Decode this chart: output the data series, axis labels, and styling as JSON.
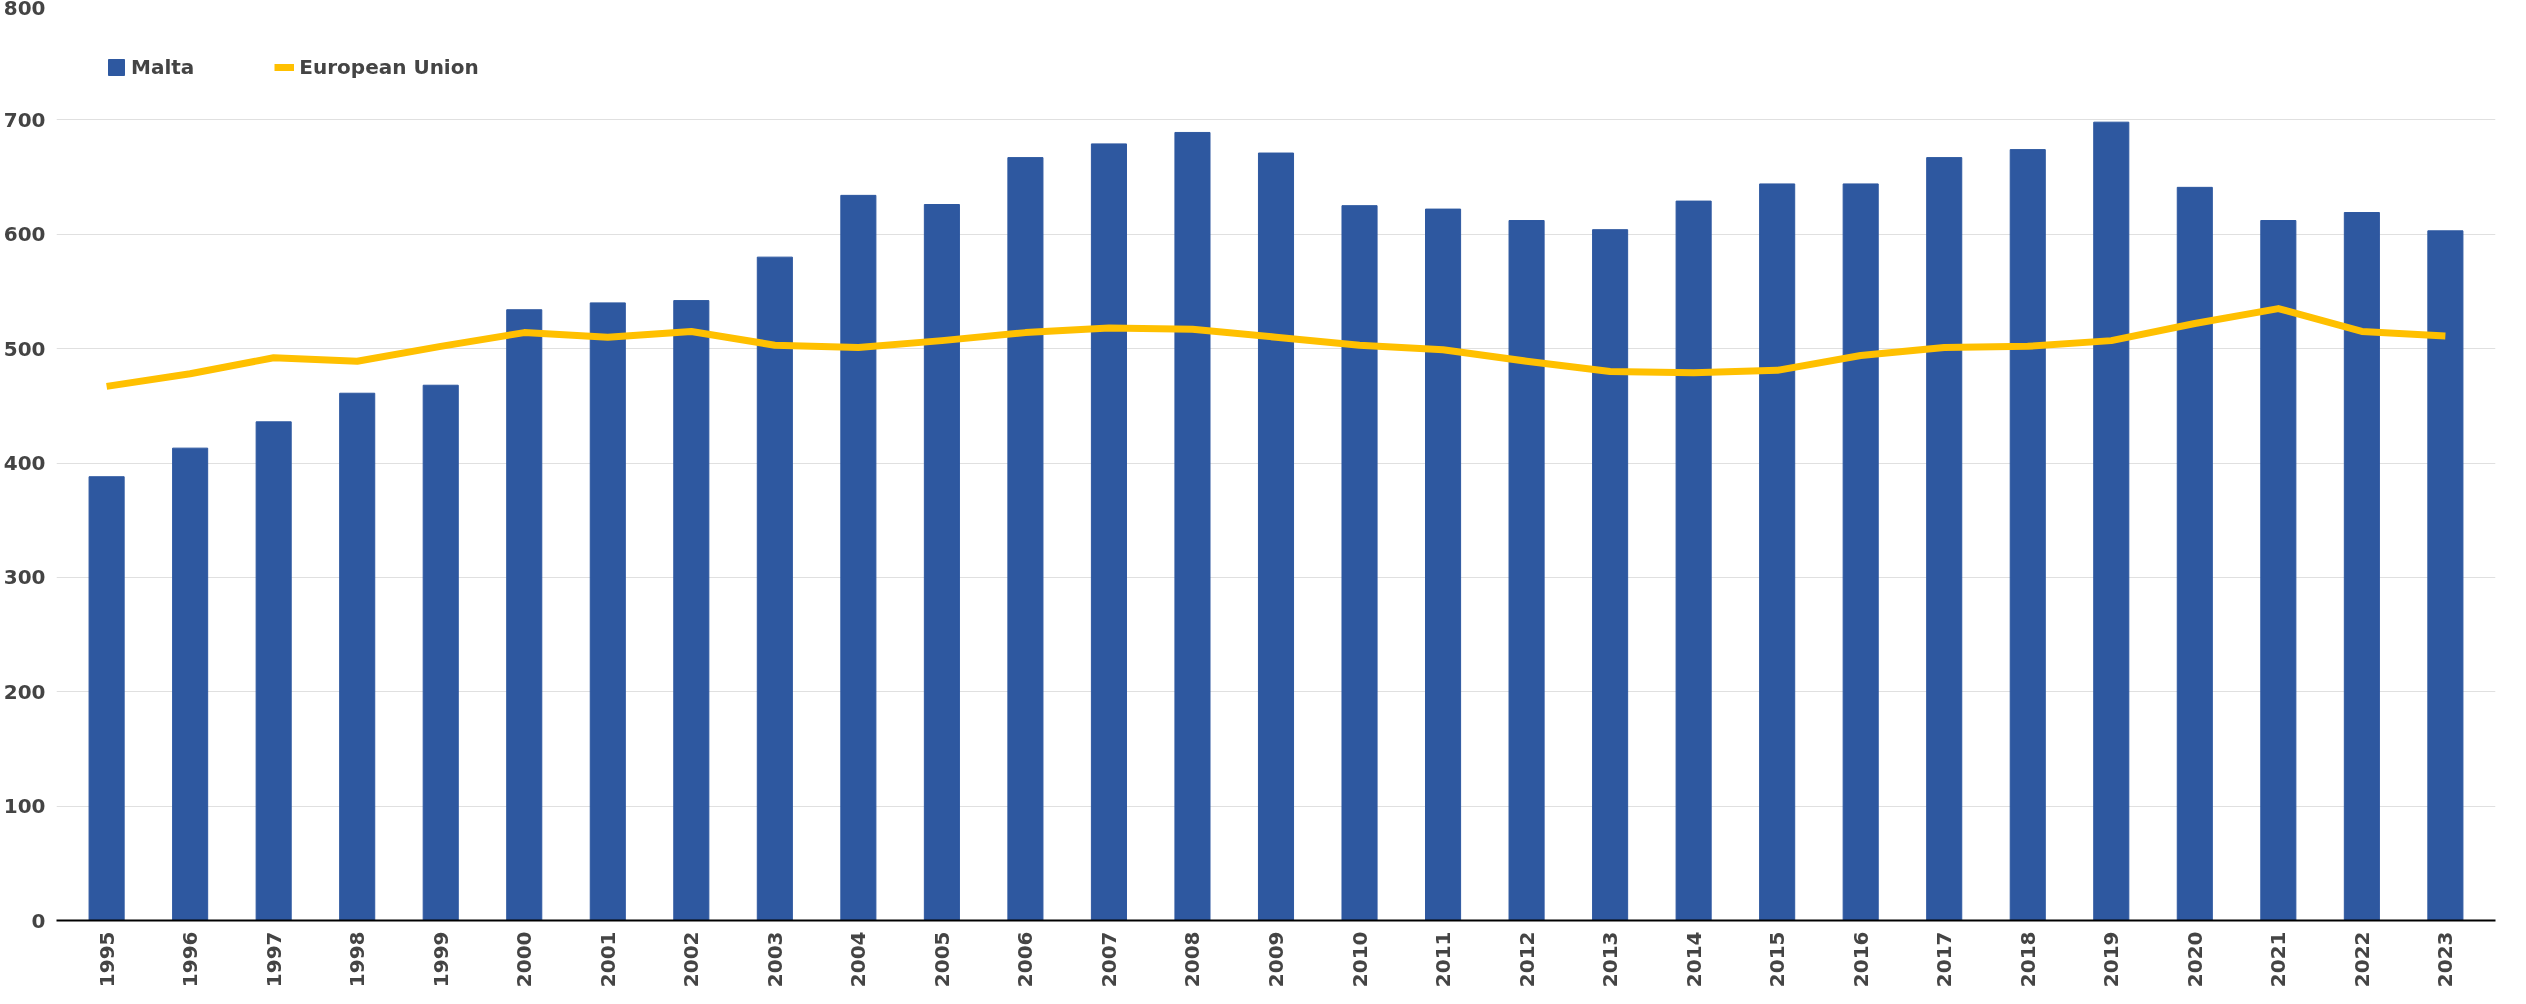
{
  "chart_data": {
    "type": "bar",
    "categories": [
      "1995",
      "1996",
      "1997",
      "1998",
      "1999",
      "2000",
      "2001",
      "2002",
      "2003",
      "2004",
      "2005",
      "2006",
      "2007",
      "2008",
      "2009",
      "2010",
      "2011",
      "2012",
      "2013",
      "2014",
      "2015",
      "2016",
      "2017",
      "2018",
      "2019",
      "2020",
      "2021",
      "2022",
      "2023"
    ],
    "series": [
      {
        "name": "Malta",
        "color": "#2e58a0",
        "values": [
          388,
          413,
          436,
          461,
          468,
          534,
          540,
          542,
          580,
          634,
          626,
          667,
          679,
          689,
          671,
          625,
          622,
          612,
          604,
          629,
          644,
          644,
          667,
          674,
          698,
          641,
          612,
          619,
          603
        ]
      },
      {
        "name": "European Union",
        "type": "line",
        "color": "#ffc000",
        "values": [
          467,
          478,
          492,
          489,
          502,
          514,
          510,
          515,
          503,
          501,
          507,
          514,
          518,
          517,
          510,
          503,
          499,
          489,
          480,
          479,
          481,
          494,
          501,
          502,
          507,
          522,
          535,
          515,
          511
        ]
      }
    ],
    "ylim": [
      0,
      800
    ],
    "yticks": [
      0,
      100,
      200,
      300,
      400,
      500,
      600,
      700,
      800
    ],
    "grid": "y",
    "legend": "top left",
    "line_style": "solid",
    "marker": "none"
  }
}
